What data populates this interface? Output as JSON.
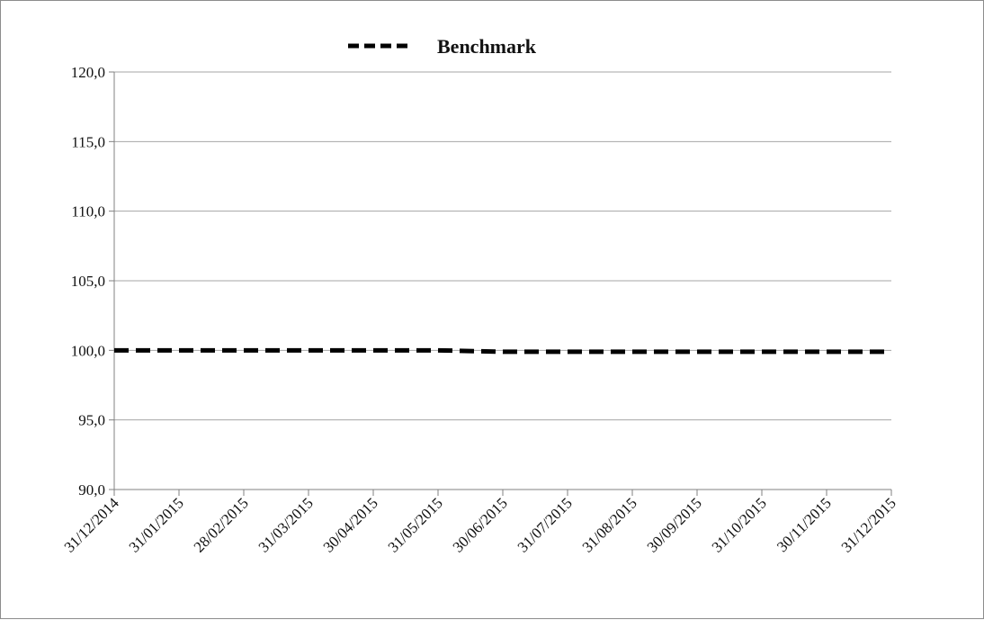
{
  "chart_data": {
    "type": "line",
    "title": "",
    "xlabel": "",
    "ylabel": "",
    "x": [
      "31/12/2014",
      "31/01/2015",
      "28/02/2015",
      "31/03/2015",
      "30/04/2015",
      "31/05/2015",
      "30/06/2015",
      "31/07/2015",
      "31/08/2015",
      "30/09/2015",
      "31/10/2015",
      "30/11/2015",
      "31/12/2015"
    ],
    "ylim": [
      90,
      120
    ],
    "y_ticks": [
      "90,0",
      "95,0",
      "100,0",
      "105,0",
      "110,0",
      "115,0",
      "120,0"
    ],
    "grid": true,
    "legend": {
      "position": "top-center"
    },
    "series": [
      {
        "name": "Benchmark",
        "style": "dashed",
        "color": "#000000",
        "values": [
          100.0,
          100.0,
          100.0,
          100.0,
          100.0,
          100.0,
          99.9,
          99.9,
          99.9,
          99.9,
          99.9,
          99.9,
          99.9
        ]
      }
    ]
  }
}
